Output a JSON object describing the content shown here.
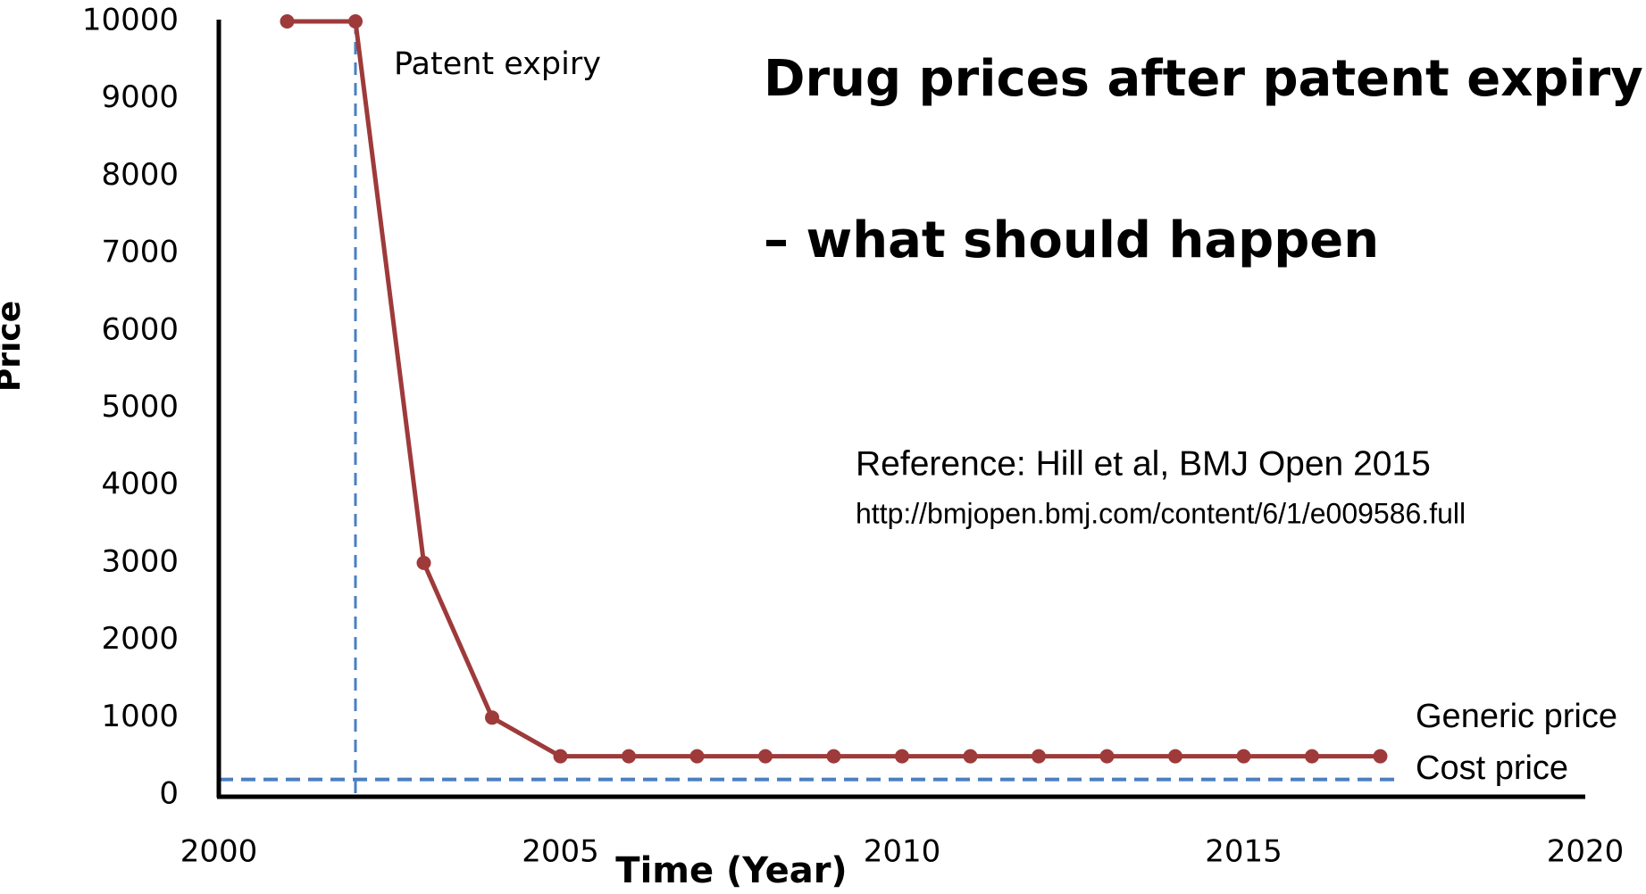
{
  "chart_data": {
    "type": "line",
    "title": "Drug prices after patent expiry",
    "subtitle": "– what should happen",
    "xlabel": "Time (Year)",
    "ylabel": "Price",
    "x": [
      2001,
      2002,
      2003,
      2004,
      2005,
      2006,
      2007,
      2008,
      2009,
      2010,
      2011,
      2012,
      2013,
      2014,
      2015,
      2016,
      2017
    ],
    "series": [
      {
        "name": "Generic price",
        "color": "#9e3a3a",
        "values": [
          10000,
          10000,
          3000,
          1000,
          500,
          500,
          500,
          500,
          500,
          500,
          500,
          500,
          500,
          500,
          500,
          500,
          500
        ]
      }
    ],
    "reference_lines": [
      {
        "axis": "x",
        "value": 2002,
        "label": "Patent expiry",
        "color": "#4a7fc1"
      },
      {
        "axis": "y",
        "value": 200,
        "label": "Cost price",
        "color": "#4a7fc1"
      }
    ],
    "annotations": [
      "Reference: Hill et al, BMJ Open 2015",
      "http://bmjopen.bmj.com/content/6/1/e009586.full"
    ],
    "xlim": [
      2000,
      2020
    ],
    "xticks": [
      2000,
      2005,
      2010,
      2015,
      2020
    ],
    "ylim": [
      0,
      10000
    ],
    "yticks": [
      0,
      1000,
      2000,
      3000,
      4000,
      5000,
      6000,
      7000,
      8000,
      9000,
      10000
    ],
    "title_color": "#c00000"
  }
}
